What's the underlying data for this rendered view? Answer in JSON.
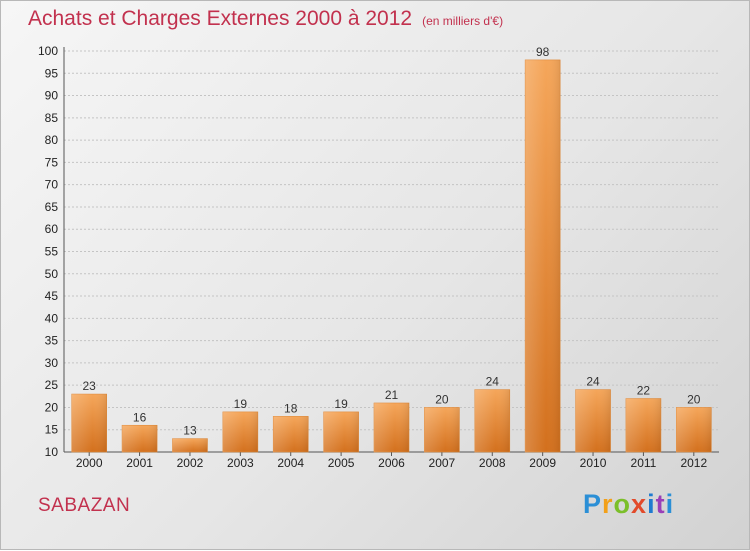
{
  "header": {
    "title": "Achats et Charges Externes 2000 à 2012",
    "unit": "(en milliers d'€)"
  },
  "footer": {
    "place": "SABAZAN",
    "logo": [
      "P",
      "r",
      "o",
      "x",
      "i",
      "t",
      "i"
    ]
  },
  "colors": {
    "bar_light": "#f5a65a",
    "bar_dark": "#d3701d",
    "title": "#c2314e"
  },
  "chart_data": {
    "type": "bar",
    "title": "Achats et Charges Externes 2000 à 2012",
    "subtitle": "(en milliers d'€)",
    "categories": [
      "2000",
      "2001",
      "2002",
      "2003",
      "2004",
      "2005",
      "2006",
      "2007",
      "2008",
      "2009",
      "2010",
      "2011",
      "2012"
    ],
    "values": [
      23,
      16,
      13,
      19,
      18,
      19,
      21,
      20,
      24,
      98,
      24,
      22,
      20
    ],
    "ylim": [
      10,
      100
    ],
    "yticks": [
      10,
      15,
      20,
      25,
      30,
      35,
      40,
      45,
      50,
      55,
      60,
      65,
      70,
      75,
      80,
      85,
      90,
      95,
      100
    ],
    "grid": true,
    "data_labels": true
  }
}
